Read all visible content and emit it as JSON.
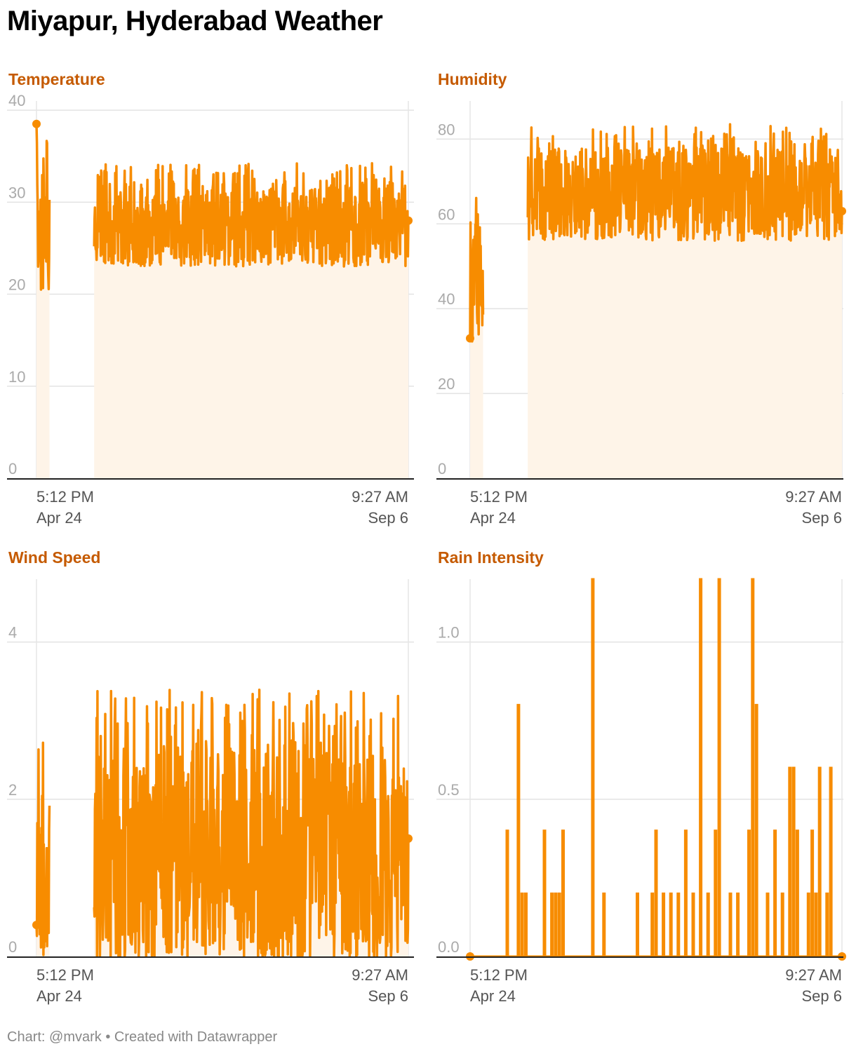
{
  "page": {
    "title": "Miyapur, Hyderabad Weather",
    "footer": "Chart: @mvark • Created with Datawrapper",
    "accent_color": "#f78c00",
    "title_color": "#c55a00",
    "fill_color": "#fef4e8"
  },
  "chart_data": [
    {
      "id": "temperature",
      "type": "area",
      "title": "Temperature",
      "xlabel": "",
      "ylabel": "",
      "ylim": [
        0,
        41
      ],
      "yticks": [
        0,
        10,
        20,
        30,
        40
      ],
      "ytick_labels": [
        "0",
        "10",
        "20",
        "30",
        "40"
      ],
      "x_ticks": [
        {
          "line1": "5:12 PM",
          "line2": "Apr 24"
        },
        {
          "line1": "9:27 AM",
          "line2": "Sep 6"
        }
      ],
      "grid": true,
      "x_domain": [
        0,
        100
      ],
      "segments": [
        {
          "start": 0,
          "end": 3.5,
          "base": 27,
          "amp": 7,
          "seed": 11
        },
        {
          "start": 15.5,
          "end": 100,
          "base": 27.5,
          "amp": 4.5,
          "seed": 23
        }
      ],
      "end_points": {
        "start": 38.5,
        "end": 28
      }
    },
    {
      "id": "humidity",
      "type": "area",
      "title": "Humidity",
      "xlabel": "",
      "ylabel": "",
      "ylim": [
        0,
        89
      ],
      "yticks": [
        0,
        20,
        40,
        60,
        80
      ],
      "ytick_labels": [
        "0",
        "20",
        "40",
        "60",
        "80"
      ],
      "x_ticks": [
        {
          "line1": "5:12 PM",
          "line2": "Apr 24"
        },
        {
          "line1": "9:27 AM",
          "line2": "Sep 6"
        }
      ],
      "grid": true,
      "x_domain": [
        0,
        100
      ],
      "segments": [
        {
          "start": 0,
          "end": 3.5,
          "base": 45,
          "amp": 15,
          "seed": 37
        },
        {
          "start": 15.5,
          "end": 100,
          "base": 67,
          "amp": 11,
          "seed": 41
        }
      ],
      "end_points": {
        "start": 33,
        "end": 63
      }
    },
    {
      "id": "wind_speed",
      "type": "area",
      "title": "Wind Speed",
      "xlabel": "",
      "ylabel": "",
      "ylim": [
        0,
        4.8
      ],
      "yticks": [
        0,
        2,
        4
      ],
      "ytick_labels": [
        "0",
        "2",
        "4"
      ],
      "x_ticks": [
        {
          "line1": "5:12 PM",
          "line2": "Apr 24"
        },
        {
          "line1": "9:27 AM",
          "line2": "Sep 6"
        }
      ],
      "grid": true,
      "x_domain": [
        0,
        100
      ],
      "segments": [
        {
          "start": 0,
          "end": 3.5,
          "base": 1.2,
          "amp": 1.2,
          "seed": 53
        },
        {
          "start": 15.5,
          "end": 100,
          "base": 1.3,
          "amp": 1.4,
          "seed": 59
        }
      ],
      "end_points": {
        "start": 0.4,
        "end": 1.5
      }
    },
    {
      "id": "rain_intensity",
      "type": "line",
      "title": "Rain Intensity",
      "xlabel": "",
      "ylabel": "",
      "ylim": [
        0,
        1.2
      ],
      "yticks": [
        0,
        0.5,
        1.0
      ],
      "ytick_labels": [
        "0.0",
        "0.5",
        "1.0"
      ],
      "x_ticks": [
        {
          "line1": "5:12 PM",
          "line2": "Apr 24"
        },
        {
          "line1": "9:27 AM",
          "line2": "Sep 6"
        }
      ],
      "grid": true,
      "x_domain": [
        0,
        100
      ],
      "spikes": [
        [
          10,
          0.4
        ],
        [
          13,
          0.8
        ],
        [
          14,
          0.2
        ],
        [
          15,
          0.2
        ],
        [
          20,
          0.4
        ],
        [
          22,
          0.2
        ],
        [
          23,
          0.2
        ],
        [
          24,
          0.2
        ],
        [
          25,
          0.4
        ],
        [
          33,
          1.2
        ],
        [
          36,
          0.2
        ],
        [
          45,
          0.2
        ],
        [
          49,
          0.2
        ],
        [
          50,
          0.4
        ],
        [
          52,
          0.2
        ],
        [
          54,
          0.2
        ],
        [
          56,
          0.2
        ],
        [
          58,
          0.4
        ],
        [
          60,
          0.2
        ],
        [
          62,
          1.2
        ],
        [
          64,
          0.2
        ],
        [
          66,
          0.4
        ],
        [
          67,
          1.2
        ],
        [
          70,
          0.2
        ],
        [
          72,
          0.2
        ],
        [
          75,
          0.4
        ],
        [
          76,
          1.2
        ],
        [
          77,
          0.8
        ],
        [
          80,
          0.2
        ],
        [
          82,
          0.4
        ],
        [
          84,
          0.2
        ],
        [
          86,
          0.6
        ],
        [
          87,
          0.6
        ],
        [
          88,
          0.4
        ],
        [
          91,
          0.2
        ],
        [
          92,
          0.4
        ],
        [
          93,
          0.2
        ],
        [
          94,
          0.6
        ],
        [
          96,
          0.2
        ],
        [
          97,
          0.6
        ]
      ],
      "end_points": {
        "start": 0,
        "end": 0
      }
    }
  ]
}
